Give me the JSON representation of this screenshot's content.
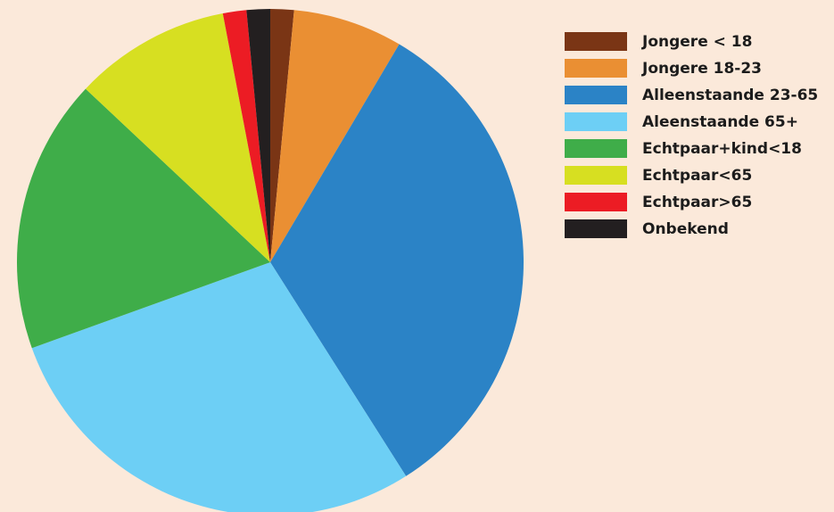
{
  "chart_data": {
    "type": "pie",
    "title": "",
    "legend_position": "right",
    "start_angle_deg": 0,
    "direction": "clockwise",
    "slices": [
      {
        "label": "Jongere < 18",
        "value": 1.5,
        "color": "#7a3515"
      },
      {
        "label": "Jongere 18-23",
        "value": 7.0,
        "color": "#ea8f33"
      },
      {
        "label": "Alleenstaande 23-65",
        "value": 32.5,
        "color": "#2b83c6"
      },
      {
        "label": "Aleenstaande 65+",
        "value": 28.5,
        "color": "#6dcff5"
      },
      {
        "label": "Echtpaar+kind<18",
        "value": 17.5,
        "color": "#3fad49"
      },
      {
        "label": "Echtpaar<65",
        "value": 10.0,
        "color": "#d7df21"
      },
      {
        "label": "Echtpaar>65",
        "value": 1.5,
        "color": "#ec1c24"
      },
      {
        "label": "Onbekend",
        "value": 1.5,
        "color": "#231f20"
      }
    ]
  }
}
